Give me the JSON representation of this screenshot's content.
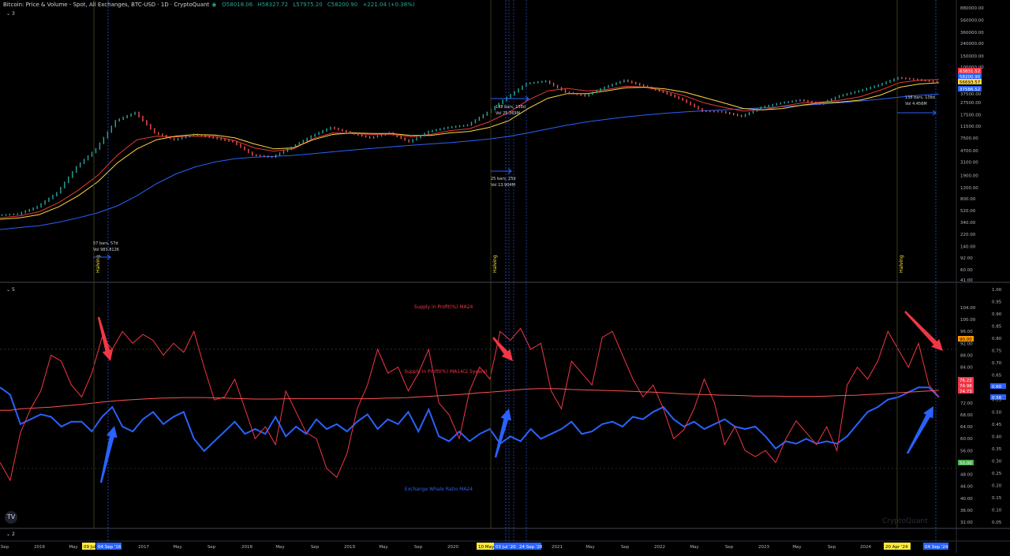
{
  "header": {
    "title": "Bitcoin: Price & Volume - Spot, All Exchanges, BTC-USD · 1D · CryptoQuant",
    "open": "O58018.06",
    "high": "H58327.72",
    "low": "L57975.20",
    "close": "C58200.90",
    "change": "+221.04 (+0.38%)",
    "pane1_count": "3",
    "pane2_count": "5",
    "pane3_count": "2",
    "watermark": "CryptoQuant"
  },
  "colors": {
    "price_ma_blue": "#2962ff",
    "price_ma_red": "#e53935",
    "price_ma_yellow": "#ffd740",
    "supply": "#f23645",
    "supply_ma": "#ff5252",
    "whale": "#2962ff",
    "halving": "#ffeb3b"
  },
  "chart_data": [
    {
      "type": "line",
      "title": "Bitcoin: Price & Volume - Spot, All Exchanges, BTC-USD · 1D · CryptoQuant",
      "scale": "log",
      "y_ticks": [
        "880000.00",
        "560000.00",
        "360000.00",
        "240000.00",
        "150000.00",
        "100000.00",
        "60000.00",
        "37500.00",
        "27500.00",
        "17500.00",
        "11500.00",
        "7500.00",
        "4700.00",
        "3100.00",
        "1900.00",
        "1200.00",
        "800.00",
        "520.00",
        "340.00",
        "220.00",
        "140.00",
        "92.00",
        "60.00",
        "41.00"
      ],
      "price_labels": [
        "63831.52",
        "58200.90",
        "56693.57",
        "37586.52"
      ],
      "series": [
        {
          "values": [
            440,
            460,
            600,
            1000,
            2600,
            5000,
            14000,
            19000,
            9000,
            7000,
            8500,
            7500,
            6500,
            4000,
            3700,
            5300,
            8000,
            11000,
            9000,
            7500,
            9000,
            6500,
            9500,
            11000,
            12000,
            19000,
            33000,
            55000,
            60000,
            40000,
            35000,
            48000,
            62000,
            50000,
            40000,
            30000,
            20000,
            19500,
            16500,
            23000,
            27000,
            30000,
            26000,
            35000,
            42000,
            52000,
            68000,
            63000,
            58200
          ]
        },
        {
          "values": [
            380,
            400,
            450,
            600,
            900,
            1500,
            3000,
            5000,
            7000,
            8000,
            8500,
            8300,
            7500,
            6000,
            5000,
            5200,
            7000,
            8500,
            9000,
            8800,
            8800,
            8200,
            8200,
            9000,
            9500,
            11000,
            14000,
            22000,
            32000,
            38000,
            38000,
            42000,
            47000,
            48000,
            45000,
            40000,
            33000,
            27000,
            22000,
            21000,
            22000,
            25000,
            27000,
            28000,
            30000,
            36000,
            48000,
            54000,
            56693.57
          ]
        },
        {
          "values": [
            400,
            430,
            500,
            700,
            1100,
            1900,
            4000,
            7000,
            8000,
            7800,
            8000,
            7900,
            6800,
            5200,
            4600,
            5000,
            7300,
            9000,
            8800,
            8500,
            8600,
            7800,
            8500,
            9800,
            10500,
            13500,
            19000,
            30000,
            42000,
            46000,
            42000,
            44000,
            50000,
            48000,
            42000,
            35000,
            27000,
            23000,
            20000,
            21000,
            24000,
            27000,
            28000,
            30000,
            34000,
            43000,
            57000,
            62000,
            63831.52
          ]
        },
        {
          "values": [
            260,
            280,
            300,
            340,
            400,
            480,
            620,
            900,
            1400,
            2000,
            2600,
            3100,
            3500,
            3700,
            3800,
            3950,
            4200,
            4500,
            4800,
            5100,
            5400,
            5700,
            6000,
            6300,
            6700,
            7200,
            7900,
            9000,
            10400,
            12000,
            13500,
            14800,
            16200,
            17400,
            18500,
            19400,
            20200,
            21000,
            21800,
            22600,
            23600,
            24700,
            25900,
            27200,
            29000,
            31000,
            33500,
            35800,
            37586.52
          ]
        }
      ]
    },
    {
      "type": "line",
      "y_ticks_left": [
        "104.00",
        "100.00",
        "96.00",
        "92.00",
        "88.00",
        "84.00",
        "80.00",
        "76.00",
        "72.00",
        "68.00",
        "64.00",
        "60.00",
        "56.00",
        "52.00",
        "48.00",
        "44.00",
        "40.00",
        "36.00",
        "32.00"
      ],
      "y_ticks_right": [
        "1.00",
        "0.95",
        "0.90",
        "0.85",
        "0.80",
        "0.75",
        "0.70",
        "0.65",
        "0.60",
        "0.55",
        "0.50",
        "0.45",
        "0.40",
        "0.35",
        "0.30",
        "0.25",
        "0.20",
        "0.15",
        "0.10",
        "0.05"
      ],
      "value_labels": [
        "90.00",
        "76.22",
        "74.98",
        "74.73",
        "0.60",
        "0.56",
        "50.00"
      ],
      "annotations": [
        "Supply in Profit(%) MA24",
        "Supply in Profit(%) MA14(2.5years)",
        "Exchange Whale Ratio MA24"
      ],
      "series": [
        {
          "name": "Supply in Profit(%) MA24",
          "values": [
            52,
            46,
            62,
            70,
            76,
            88,
            86,
            78,
            74,
            82,
            94,
            90,
            96,
            92,
            95,
            93,
            88,
            92,
            89,
            96,
            84,
            73,
            74,
            80,
            70,
            60,
            64,
            58,
            76,
            69,
            62,
            60,
            50,
            47,
            55,
            70,
            78,
            90,
            82,
            84,
            76,
            82,
            90,
            72,
            68,
            60,
            76,
            84,
            80,
            96,
            93,
            97,
            90,
            92,
            76,
            70,
            86,
            82,
            78,
            94,
            96,
            88,
            80,
            74,
            78,
            70,
            60,
            63,
            70,
            80,
            72,
            58,
            64,
            56,
            54,
            56,
            52,
            60,
            66,
            62,
            58,
            64,
            56,
            78,
            84,
            80,
            86,
            96,
            90,
            84,
            92,
            78,
            74
          ]
        },
        {
          "name": "Supply in Profit(%) MA14(2.5years)",
          "values": [
            69.5,
            69.5,
            70,
            70.2,
            70.4,
            70.6,
            70.9,
            71.2,
            71.5,
            71.9,
            72.3,
            72.6,
            72.9,
            73.1,
            73.3,
            73.5,
            73.6,
            73.7,
            73.8,
            73.8,
            73.8,
            73.7,
            73.6,
            73.5,
            73.4,
            73.3,
            73.3,
            73.3,
            73.4,
            73.4,
            73.4,
            73.4,
            73.4,
            73.4,
            73.4,
            73.4,
            73.4,
            73.5,
            73.6,
            73.7,
            73.8,
            74,
            74.2,
            74.4,
            74.6,
            74.8,
            75.1,
            75.4,
            75.6,
            75.9,
            76.2,
            76.5,
            76.7,
            76.8,
            76.8,
            76.7,
            76.5,
            76.4,
            76.3,
            76.2,
            76.1,
            76,
            75.9,
            75.7,
            75.6,
            75.4,
            75.2,
            75,
            74.9,
            74.8,
            74.7,
            74.6,
            74.5,
            74.4,
            74.3,
            74.3,
            74.3,
            74.2,
            74.2,
            74.2,
            74.2,
            74.3,
            74.4,
            74.5,
            74.6,
            74.8,
            75,
            75.2,
            75.4,
            75.6,
            75.8,
            76,
            76.22
          ]
        },
        {
          "name": "Exchange Whale Ratio MA24",
          "values": [
            0.6,
            0.57,
            0.45,
            0.47,
            0.49,
            0.48,
            0.44,
            0.46,
            0.46,
            0.42,
            0.48,
            0.52,
            0.44,
            0.42,
            0.47,
            0.5,
            0.45,
            0.48,
            0.5,
            0.39,
            0.34,
            0.38,
            0.42,
            0.46,
            0.41,
            0.43,
            0.41,
            0.48,
            0.4,
            0.44,
            0.41,
            0.47,
            0.43,
            0.45,
            0.42,
            0.46,
            0.49,
            0.43,
            0.47,
            0.45,
            0.5,
            0.42,
            0.51,
            0.4,
            0.38,
            0.42,
            0.38,
            0.41,
            0.43,
            0.37,
            0.4,
            0.38,
            0.43,
            0.39,
            0.41,
            0.43,
            0.46,
            0.41,
            0.42,
            0.45,
            0.46,
            0.44,
            0.48,
            0.47,
            0.5,
            0.52,
            0.47,
            0.44,
            0.46,
            0.43,
            0.45,
            0.47,
            0.44,
            0.43,
            0.44,
            0.4,
            0.35,
            0.38,
            0.37,
            0.39,
            0.37,
            0.38,
            0.37,
            0.4,
            0.45,
            0.5,
            0.52,
            0.55,
            0.56,
            0.58,
            0.6,
            0.6,
            0.56
          ]
        }
      ]
    }
  ],
  "halvings": {
    "label": "Halving",
    "events": [
      {
        "label": "09 Jul",
        "measure_label": "04 Sep '16"
      },
      {
        "label": "10 May",
        "measure_label": "03 Jul '20"
      },
      {
        "label": "20 Apr '24",
        "measure_label": "04 Sep '24"
      }
    ],
    "extra_label": "24 Sep '20"
  },
  "measures": [
    {
      "line1": "57 bars, 57d",
      "line2": "Vol 983.812K"
    },
    {
      "line1": "25 bars, 25d",
      "line2": "Vol 13.904M"
    },
    {
      "line1": "138 bars, 138d",
      "line2": "Vol 25.369M"
    },
    {
      "line1": "138 bars, 138d",
      "line2": "Vol 4.456M"
    }
  ],
  "x_axis": {
    "ticks": [
      "Sep",
      "2016",
      "May",
      "2017",
      "May",
      "Sep",
      "2018",
      "May",
      "Sep",
      "2019",
      "May",
      "Sep",
      "2020",
      "2021",
      "May",
      "Sep",
      "2022",
      "May",
      "Sep",
      "2023",
      "May",
      "Sep",
      "2024"
    ]
  }
}
